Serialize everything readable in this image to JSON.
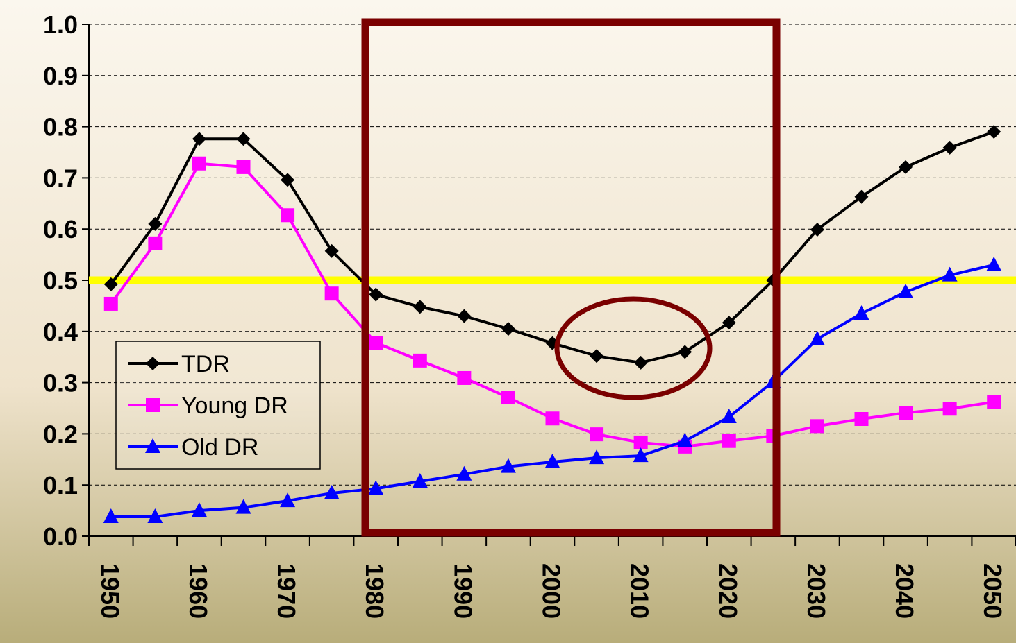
{
  "chart_data": {
    "type": "line",
    "categories": [
      "1950",
      null,
      "1960",
      null,
      "1970",
      null,
      "1980",
      null,
      "1990",
      null,
      "2000",
      null,
      "2010",
      null,
      "2020",
      null,
      "2030",
      null,
      "2040",
      null,
      "2050"
    ],
    "series": [
      {
        "name": "TDR",
        "color": "#000000",
        "marker": "diamond",
        "values": [
          0.492,
          0.61,
          0.776,
          0.776,
          0.696,
          0.557,
          0.472,
          0.448,
          0.43,
          0.405,
          0.377,
          0.352,
          0.339,
          0.36,
          0.417,
          0.5,
          0.599,
          0.663,
          0.721,
          0.759,
          0.79
        ]
      },
      {
        "name": "Young DR",
        "color": "#ff00ff",
        "marker": "square",
        "values": [
          0.454,
          0.572,
          0.728,
          0.721,
          0.627,
          0.474,
          0.378,
          0.343,
          0.309,
          0.271,
          0.23,
          0.199,
          0.183,
          0.175,
          0.186,
          0.196,
          0.215,
          0.229,
          0.241,
          0.249,
          0.262
        ]
      },
      {
        "name": "Old DR",
        "color": "#0000ff",
        "marker": "triangle",
        "values": [
          0.038,
          0.038,
          0.05,
          0.056,
          0.069,
          0.084,
          0.093,
          0.107,
          0.121,
          0.136,
          0.145,
          0.153,
          0.157,
          0.186,
          0.233,
          0.302,
          0.385,
          0.435,
          0.477,
          0.51,
          0.53
        ]
      }
    ],
    "ylim": [
      0,
      1
    ],
    "yticks": [
      {
        "value": 0,
        "label": "0.0"
      },
      0.1,
      0.2,
      0.3,
      0.4,
      0.5,
      0.6,
      0.7,
      0.8,
      0.9,
      {
        "value": 1,
        "label": "1.0"
      }
    ],
    "grid": true,
    "reference_line": {
      "value": 0.5,
      "color": "#ffff00"
    },
    "legend": "left"
  }
}
